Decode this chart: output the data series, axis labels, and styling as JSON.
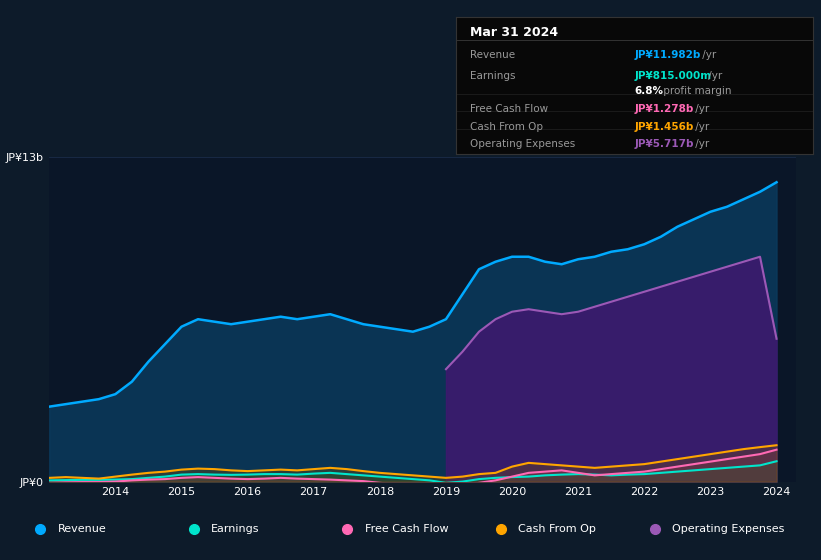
{
  "bg_color": "#0d1b2a",
  "chart_bg": "#0a1628",
  "grid_color": "#1e3050",
  "years": [
    2013.0,
    2013.25,
    2013.5,
    2013.75,
    2014.0,
    2014.25,
    2014.5,
    2014.75,
    2015.0,
    2015.25,
    2015.5,
    2015.75,
    2016.0,
    2016.25,
    2016.5,
    2016.75,
    2017.0,
    2017.25,
    2017.5,
    2017.75,
    2018.0,
    2018.25,
    2018.5,
    2018.75,
    2019.0,
    2019.25,
    2019.5,
    2019.75,
    2020.0,
    2020.25,
    2020.5,
    2020.75,
    2021.0,
    2021.25,
    2021.5,
    2021.75,
    2022.0,
    2022.25,
    2022.5,
    2022.75,
    2023.0,
    2023.25,
    2023.5,
    2023.75,
    2024.0
  ],
  "revenue": [
    3.0,
    3.1,
    3.2,
    3.3,
    3.5,
    4.0,
    4.8,
    5.5,
    6.2,
    6.5,
    6.4,
    6.3,
    6.4,
    6.5,
    6.6,
    6.5,
    6.6,
    6.7,
    6.5,
    6.3,
    6.2,
    6.1,
    6.0,
    6.2,
    6.5,
    7.5,
    8.5,
    8.8,
    9.0,
    9.0,
    8.8,
    8.7,
    8.9,
    9.0,
    9.2,
    9.3,
    9.5,
    9.8,
    10.2,
    10.5,
    10.8,
    11.0,
    11.3,
    11.6,
    11.982
  ],
  "earnings": [
    0.05,
    0.06,
    0.07,
    0.07,
    0.08,
    0.1,
    0.15,
    0.2,
    0.28,
    0.3,
    0.28,
    0.27,
    0.28,
    0.3,
    0.3,
    0.28,
    0.32,
    0.35,
    0.3,
    0.25,
    0.2,
    0.15,
    0.1,
    0.05,
    -0.05,
    0.0,
    0.1,
    0.15,
    0.18,
    0.2,
    0.25,
    0.28,
    0.3,
    0.28,
    0.25,
    0.28,
    0.3,
    0.35,
    0.4,
    0.45,
    0.5,
    0.55,
    0.6,
    0.65,
    0.815
  ],
  "free_cash_flow": [
    -0.05,
    -0.03,
    -0.02,
    -0.02,
    0.0,
    0.05,
    0.08,
    0.1,
    0.15,
    0.18,
    0.15,
    0.12,
    0.1,
    0.12,
    0.15,
    0.12,
    0.1,
    0.08,
    0.05,
    0.02,
    -0.05,
    -0.1,
    -0.15,
    -0.2,
    -0.25,
    -0.15,
    -0.05,
    0.05,
    0.2,
    0.35,
    0.4,
    0.45,
    0.35,
    0.25,
    0.3,
    0.35,
    0.4,
    0.5,
    0.6,
    0.7,
    0.8,
    0.9,
    1.0,
    1.1,
    1.278
  ],
  "cash_from_op": [
    0.15,
    0.18,
    0.15,
    0.12,
    0.2,
    0.28,
    0.35,
    0.4,
    0.48,
    0.52,
    0.5,
    0.45,
    0.42,
    0.45,
    0.48,
    0.45,
    0.5,
    0.55,
    0.5,
    0.42,
    0.35,
    0.3,
    0.25,
    0.2,
    0.15,
    0.2,
    0.3,
    0.35,
    0.6,
    0.75,
    0.7,
    0.65,
    0.6,
    0.55,
    0.6,
    0.65,
    0.7,
    0.8,
    0.9,
    1.0,
    1.1,
    1.2,
    1.3,
    1.38,
    1.456
  ],
  "opex_years": [
    2019.0,
    2019.25,
    2019.5,
    2019.75,
    2020.0,
    2020.25,
    2020.5,
    2020.75,
    2021.0,
    2021.25,
    2021.5,
    2021.75,
    2022.0,
    2022.25,
    2022.5,
    2022.75,
    2023.0,
    2023.25,
    2023.5,
    2023.75,
    2024.0
  ],
  "operating_expenses": [
    4.5,
    5.2,
    6.0,
    6.5,
    6.8,
    6.9,
    6.8,
    6.7,
    6.8,
    7.0,
    7.2,
    7.4,
    7.6,
    7.8,
    8.0,
    8.2,
    8.4,
    8.6,
    8.8,
    9.0,
    5.717
  ],
  "ylim": [
    0,
    13
  ],
  "revenue_color": "#00aaff",
  "earnings_color": "#00e5cc",
  "fcf_color": "#ff69b4",
  "cashop_color": "#ffa500",
  "opex_color": "#9b59b6",
  "revenue_fill": "#0a3a5c",
  "opex_fill": "#3d1a6e",
  "earnings_fill": "#0a4a40",
  "info_box": {
    "title": "Mar 31 2024",
    "rows": [
      {
        "label": "Revenue",
        "value": "JP¥11.982b",
        "suffix": " /yr",
        "color": "#00aaff"
      },
      {
        "label": "Earnings",
        "value": "JP¥815.000m",
        "suffix": " /yr",
        "color": "#00e5cc"
      },
      {
        "label": "",
        "value": "6.8%",
        "suffix": " profit margin",
        "color": "#ffffff"
      },
      {
        "label": "Free Cash Flow",
        "value": "JP¥1.278b",
        "suffix": " /yr",
        "color": "#ff69b4"
      },
      {
        "label": "Cash From Op",
        "value": "JP¥1.456b",
        "suffix": " /yr",
        "color": "#ffa500"
      },
      {
        "label": "Operating Expenses",
        "value": "JP¥5.717b",
        "suffix": " /yr",
        "color": "#9b59b6"
      }
    ]
  },
  "legend": [
    {
      "label": "Revenue",
      "color": "#00aaff"
    },
    {
      "label": "Earnings",
      "color": "#00e5cc"
    },
    {
      "label": "Free Cash Flow",
      "color": "#ff69b4"
    },
    {
      "label": "Cash From Op",
      "color": "#ffa500"
    },
    {
      "label": "Operating Expenses",
      "color": "#9b59b6"
    }
  ]
}
